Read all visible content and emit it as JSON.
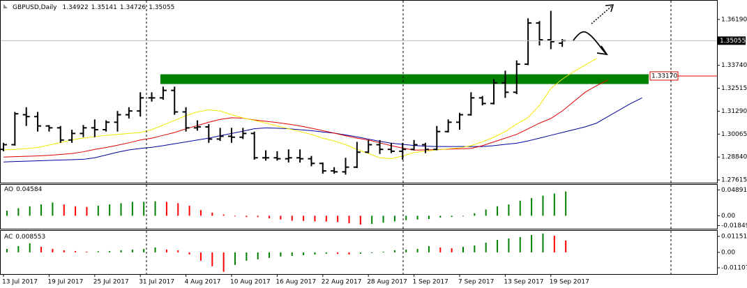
{
  "chart_data": [
    {
      "type": "ohlc",
      "title": "GBPUSD,Daily",
      "color": "#000000",
      "grid": false,
      "categories": [
        "13 Jul 2017",
        null,
        null,
        null,
        "19 Jul 2017",
        null,
        null,
        null,
        "25 Jul 2017",
        null,
        null,
        null,
        "31 Jul 2017",
        null,
        null,
        null,
        "4 Aug 2017",
        null,
        null,
        null,
        "10 Aug 2017",
        null,
        null,
        null,
        "16 Aug 2017",
        null,
        null,
        null,
        "22 Aug 2017",
        null,
        null,
        null,
        "28 Aug 2017",
        null,
        null,
        null,
        "1 Sep 2017",
        null,
        null,
        null,
        "7 Sep 2017",
        null,
        null,
        null,
        "13 Sep 2017",
        null,
        null,
        null,
        "19 Sep 2017",
        null,
        null,
        null,
        null,
        null,
        null,
        null,
        null
      ],
      "open": [
        1.2925,
        1.295,
        1.311,
        1.31,
        1.305,
        1.304,
        1.2975,
        1.301,
        1.304,
        1.303,
        1.307,
        1.311,
        1.313,
        1.32,
        1.32,
        1.324,
        1.3125,
        1.304,
        1.3045,
        1.298,
        1.2995,
        1.299,
        1.301,
        1.288,
        1.288,
        1.2875,
        1.288,
        1.2875,
        1.285,
        1.281,
        1.2805,
        1.283,
        1.291,
        1.295,
        1.2925,
        1.2915,
        1.2925,
        1.295,
        1.2925,
        1.302,
        1.307,
        1.311,
        1.32,
        1.317,
        1.328,
        1.323,
        1.338,
        1.36,
        1.351,
        1.34922,
        null,
        null,
        null,
        null,
        null,
        null,
        null
      ],
      "high": [
        1.296,
        1.3125,
        1.315,
        1.3125,
        1.3055,
        1.305,
        1.303,
        1.3055,
        1.3085,
        1.308,
        1.313,
        1.315,
        1.323,
        1.323,
        1.326,
        1.326,
        1.315,
        1.308,
        1.306,
        1.304,
        1.304,
        1.304,
        1.302,
        1.292,
        1.2915,
        1.2925,
        1.2925,
        1.289,
        1.2855,
        1.283,
        1.288,
        1.2965,
        1.2975,
        1.2975,
        1.296,
        1.296,
        1.2975,
        1.296,
        1.305,
        1.3085,
        1.312,
        1.323,
        1.321,
        1.33,
        1.3345,
        1.34,
        1.3625,
        1.361,
        1.3665,
        1.35141,
        null,
        null,
        null,
        null,
        null,
        null,
        null
      ],
      "low": [
        1.2915,
        1.2945,
        1.305,
        1.302,
        1.302,
        1.296,
        1.296,
        1.299,
        1.299,
        1.302,
        1.302,
        1.309,
        1.31,
        1.318,
        1.319,
        1.311,
        1.302,
        1.3025,
        1.296,
        1.297,
        1.296,
        1.298,
        1.287,
        1.2865,
        1.2865,
        1.2855,
        1.2855,
        1.2835,
        1.2795,
        1.2795,
        1.279,
        1.2825,
        1.2905,
        1.29,
        1.2905,
        1.287,
        1.292,
        1.2905,
        1.292,
        1.3015,
        1.303,
        1.3105,
        1.316,
        1.3165,
        1.32,
        1.322,
        1.3375,
        1.348,
        1.346,
        1.34726,
        null,
        null,
        null,
        null,
        null,
        null,
        null
      ],
      "close": [
        1.295,
        1.3115,
        1.31,
        1.305,
        1.304,
        1.2975,
        1.301,
        1.304,
        1.303,
        1.307,
        1.311,
        1.313,
        1.32,
        1.32,
        1.324,
        1.3125,
        1.304,
        1.3045,
        1.298,
        1.2995,
        1.299,
        1.301,
        1.288,
        1.288,
        1.2875,
        1.288,
        1.2875,
        1.285,
        1.281,
        1.2805,
        1.283,
        1.291,
        1.295,
        1.2925,
        1.2915,
        1.2925,
        1.295,
        1.2925,
        1.302,
        1.307,
        1.311,
        1.32,
        1.317,
        1.328,
        1.323,
        1.338,
        1.36,
        1.351,
        1.35,
        1.35055,
        null,
        null,
        null,
        null,
        null,
        null,
        null
      ],
      "series": [
        {
          "color": "#0000a0",
          "values": [
            1.2858,
            1.286,
            1.2862,
            1.2864,
            1.2866,
            1.2868,
            1.287,
            1.2872,
            1.288,
            1.2895,
            1.291,
            1.2922,
            1.293,
            1.2936,
            1.2945,
            1.2955,
            1.2965,
            1.2975,
            1.2985,
            1.2998,
            1.301,
            1.3022,
            1.3035,
            1.304,
            1.3038,
            1.3035,
            1.303,
            1.3025,
            1.3018,
            1.3012,
            1.3002,
            1.2992,
            1.298,
            1.2968,
            1.2958,
            1.2952,
            1.2946,
            1.2942,
            1.294,
            1.294,
            1.294,
            1.294,
            1.294,
            1.2945,
            1.2952,
            1.2958,
            1.297,
            1.2985,
            1.3,
            1.3015,
            1.303,
            1.3045,
            1.3065,
            1.31,
            1.3135,
            1.317,
            1.32
          ]
        },
        {
          "color": "#e00000",
          "values": [
            1.2884,
            1.2886,
            1.2888,
            1.289,
            1.2893,
            1.2898,
            1.2903,
            1.2912,
            1.2925,
            1.2935,
            1.2947,
            1.296,
            1.2975,
            1.2985,
            1.3,
            1.3015,
            1.3035,
            1.3052,
            1.307,
            1.3085,
            1.3094,
            1.3092,
            1.3082,
            1.3075,
            1.3068,
            1.306,
            1.305,
            1.3038,
            1.3025,
            1.3012,
            1.2998,
            1.2985,
            1.2975,
            1.296,
            1.2945,
            1.2932,
            1.2921,
            1.2922,
            1.2924,
            1.2926,
            1.2928,
            1.293,
            1.2945,
            1.2965,
            1.2985,
            1.3005,
            1.3035,
            1.3065,
            1.309,
            1.313,
            1.318,
            1.323,
            1.3265,
            1.3295,
            null,
            null,
            null
          ]
        },
        {
          "color": "#f2e600",
          "values": [
            1.2922,
            1.2925,
            1.2929,
            1.2935,
            1.2948,
            1.2961,
            1.2976,
            1.2985,
            1.2993,
            1.3,
            1.3005,
            1.301,
            1.3015,
            1.303,
            1.3055,
            1.308,
            1.3105,
            1.3125,
            1.3136,
            1.313,
            1.311,
            1.3093,
            1.308,
            1.3065,
            1.305,
            1.3035,
            1.302,
            1.3005,
            1.2985,
            1.297,
            1.295,
            1.2925,
            1.2903,
            1.288,
            1.2875,
            1.289,
            1.2908,
            1.2916,
            1.2922,
            1.2928,
            1.2933,
            1.2945,
            1.2965,
            1.299,
            1.302,
            1.306,
            1.3095,
            1.316,
            1.325,
            1.33,
            1.334,
            1.3375,
            1.341,
            null,
            null,
            null,
            null
          ]
        }
      ],
      "zone": {
        "from": 1.3274,
        "to": 1.3326,
        "color": "#008000"
      },
      "level": {
        "value": 1.3317,
        "label": "1.33170",
        "color": "#e00000"
      },
      "price": {
        "value": 1.35055,
        "label": "1.35055"
      },
      "ylim": [
        1.2747,
        1.3719
      ],
      "yticks": [
        {
          "value": 1.3619,
          "label": "1.36190"
        },
        {
          "value": 1.3374,
          "label": "1.33740"
        },
        {
          "value": 1.32515,
          "label": "1.32515"
        },
        {
          "value": 1.3129,
          "label": "1.31290"
        },
        {
          "value": 1.30065,
          "label": "1.30065"
        },
        {
          "value": 1.2884,
          "label": "1.28840"
        },
        {
          "value": 1.27615,
          "label": "1.27615"
        }
      ]
    },
    {
      "type": "histogram",
      "title": "AO",
      "up_color": "#008000",
      "down_color": "#ff0000",
      "values": [
        0.0095,
        0.0143,
        0.0179,
        0.0214,
        0.025,
        0.0214,
        0.0179,
        0.0167,
        0.019,
        0.0214,
        0.0238,
        0.0262,
        0.0265,
        0.0274,
        0.0262,
        0.0238,
        0.019,
        0.0107,
        0.006,
        0.0024,
        -0.0012,
        -0.0024,
        -0.0026,
        -0.0048,
        -0.0071,
        -0.0095,
        -0.0097,
        -0.0107,
        -0.011,
        -0.0119,
        -0.0143,
        -0.0167,
        -0.0155,
        -0.0131,
        -0.0107,
        -0.0083,
        -0.0071,
        -0.006,
        -0.0036,
        -0.0024,
        -0.0012,
        0.0048,
        0.0119,
        0.0179,
        0.0214,
        0.0286,
        0.0333,
        0.038,
        0.042,
        0.04584,
        null,
        null,
        null,
        null,
        null,
        null,
        null
      ],
      "ylim": [
        -0.0245,
        0.0585
      ],
      "yticks": [
        0.04891,
        {
          "value": 0,
          "label": "0.00"
        },
        -0.01849
      ]
    },
    {
      "type": "histogram",
      "title": "AC",
      "up_color": "#008000",
      "down_color": "#ff0000",
      "values": [
        0.0025,
        0.0045,
        0.0065,
        0.004,
        0.0025,
        0.0015,
        0.001,
        0.0005,
        0.0008,
        0.001,
        0.0015,
        0.002,
        0.0025,
        0.0035,
        0.002,
        0.0015,
        -0.0015,
        -0.006,
        -0.01,
        -0.014,
        -0.009,
        -0.006,
        -0.005,
        -0.004,
        -0.003,
        -0.0025,
        -0.002,
        -0.0015,
        -0.001,
        -0.0012,
        -0.0015,
        -0.001,
        -0.0005,
        0.0005,
        0.0015,
        0.002,
        0.0025,
        0.0045,
        0.0035,
        0.003,
        0.004,
        0.005,
        0.007,
        0.009,
        0.01,
        0.011,
        0.0125,
        0.0135,
        0.012,
        0.008553,
        null,
        null,
        null,
        null,
        null,
        null,
        null
      ],
      "ylim": [
        -0.0156,
        0.0155
      ],
      "yticks": [
        0.011511,
        {
          "value": 0,
          "label": "0.00"
        },
        -0.011075
      ]
    }
  ]
}
